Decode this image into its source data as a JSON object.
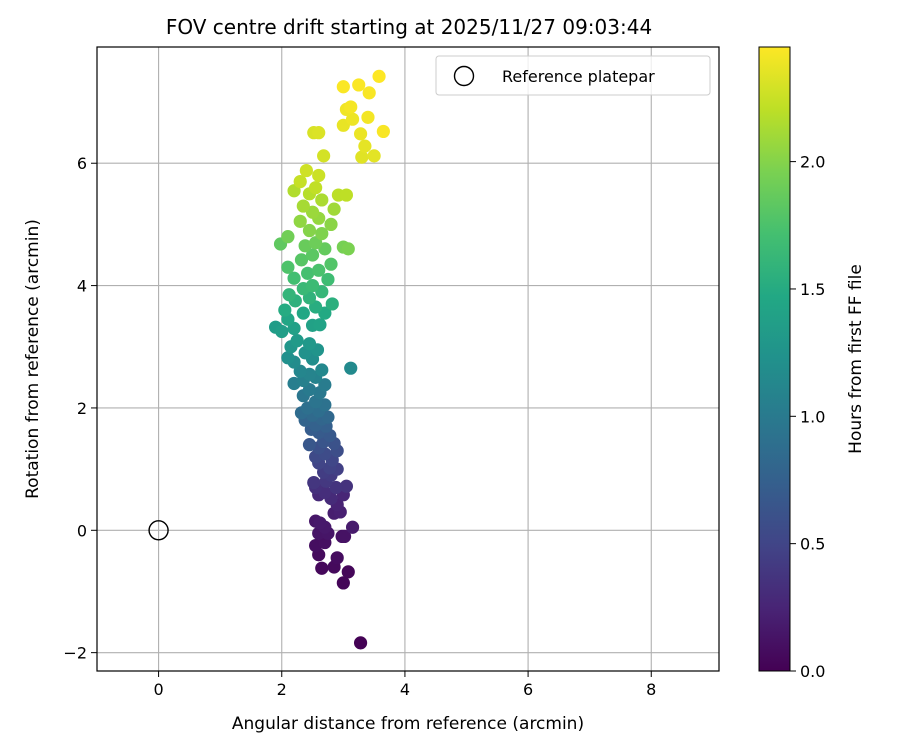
{
  "chart_data": {
    "type": "scatter",
    "title": "FOV centre drift starting at 2025/11/27 09:03:44",
    "xlabel": "Angular distance from reference (arcmin)",
    "ylabel": "Rotation from reference (arcmin)",
    "xlim": [
      -1,
      9.1
    ],
    "ylim": [
      -2.3,
      7.9
    ],
    "xticks": [
      0,
      2,
      4,
      6,
      8
    ],
    "yticks": [
      -2,
      0,
      2,
      4,
      6
    ],
    "grid": true,
    "legend": {
      "placement": "top-right",
      "entries": [
        "Reference platepar"
      ]
    },
    "reference_point": {
      "x": 0,
      "y": 0,
      "marker": "open-circle"
    },
    "colorbar": {
      "label": "Hours from first FF file",
      "colormap": "viridis",
      "range": [
        0,
        2.45
      ],
      "ticks": [
        0.0,
        0.5,
        1.0,
        1.5,
        2.0
      ],
      "tick_labels": [
        "0.0",
        "0.5",
        "1.0",
        "1.5",
        "2.0"
      ]
    },
    "series": [
      {
        "points": [
          [
            3.28,
            -1.84,
            0.01
          ],
          [
            3.0,
            -0.86,
            0.03
          ],
          [
            3.08,
            -0.68,
            0.04
          ],
          [
            2.65,
            -0.62,
            0.05
          ],
          [
            2.85,
            -0.6,
            0.06
          ],
          [
            2.6,
            -0.4,
            0.07
          ],
          [
            2.9,
            -0.45,
            0.08
          ],
          [
            2.55,
            -0.25,
            0.09
          ],
          [
            2.7,
            -0.2,
            0.1
          ],
          [
            2.98,
            -0.1,
            0.11
          ],
          [
            3.02,
            -0.1,
            0.12
          ],
          [
            2.6,
            -0.05,
            0.13
          ],
          [
            2.75,
            -0.05,
            0.14
          ],
          [
            2.55,
            0.15,
            0.15
          ],
          [
            2.7,
            0.05,
            0.16
          ],
          [
            2.62,
            0.12,
            0.17
          ],
          [
            3.15,
            0.05,
            0.18
          ],
          [
            2.85,
            0.28,
            0.2
          ],
          [
            2.95,
            0.3,
            0.22
          ],
          [
            2.9,
            0.42,
            0.24
          ],
          [
            3.0,
            0.58,
            0.26
          ],
          [
            2.6,
            0.58,
            0.28
          ],
          [
            2.8,
            0.52,
            0.3
          ],
          [
            2.7,
            0.62,
            0.32
          ],
          [
            2.55,
            0.7,
            0.34
          ],
          [
            3.05,
            0.72,
            0.36
          ],
          [
            2.88,
            0.7,
            0.37
          ],
          [
            2.52,
            0.78,
            0.38
          ],
          [
            2.72,
            0.8,
            0.4
          ],
          [
            2.8,
            0.9,
            0.42
          ],
          [
            2.68,
            0.95,
            0.44
          ],
          [
            2.9,
            1.0,
            0.46
          ],
          [
            2.78,
            1.02,
            0.48
          ],
          [
            2.6,
            1.1,
            0.5
          ],
          [
            2.82,
            1.15,
            0.52
          ],
          [
            2.55,
            1.2,
            0.54
          ],
          [
            2.7,
            1.25,
            0.56
          ],
          [
            2.9,
            1.3,
            0.58
          ],
          [
            2.6,
            1.35,
            0.6
          ],
          [
            2.85,
            1.42,
            0.62
          ],
          [
            2.68,
            1.45,
            0.64
          ],
          [
            2.45,
            1.4,
            0.66
          ],
          [
            2.78,
            1.55,
            0.68
          ],
          [
            2.6,
            1.6,
            0.7
          ],
          [
            2.48,
            1.65,
            0.72
          ],
          [
            2.72,
            1.7,
            0.74
          ],
          [
            2.55,
            1.72,
            0.76
          ],
          [
            2.38,
            1.8,
            0.78
          ],
          [
            2.65,
            1.82,
            0.8
          ],
          [
            2.75,
            1.85,
            0.82
          ],
          [
            2.5,
            1.88,
            0.84
          ],
          [
            2.32,
            1.92,
            0.86
          ],
          [
            2.6,
            1.95,
            0.88
          ],
          [
            2.42,
            2.0,
            0.9
          ],
          [
            2.7,
            2.05,
            0.92
          ],
          [
            2.55,
            2.1,
            0.94
          ],
          [
            2.35,
            2.2,
            0.96
          ],
          [
            2.62,
            2.25,
            0.98
          ],
          [
            2.45,
            2.3,
            1.0
          ],
          [
            2.7,
            2.38,
            1.02
          ],
          [
            2.2,
            2.4,
            1.04
          ],
          [
            2.35,
            2.45,
            1.06
          ],
          [
            2.55,
            2.5,
            1.08
          ],
          [
            2.45,
            2.55,
            1.1
          ],
          [
            2.3,
            2.6,
            1.12
          ],
          [
            2.65,
            2.62,
            1.14
          ],
          [
            3.12,
            2.65,
            1.16
          ],
          [
            2.2,
            2.75,
            1.18
          ],
          [
            2.5,
            2.8,
            1.2
          ],
          [
            2.1,
            2.82,
            1.22
          ],
          [
            2.38,
            2.9,
            1.24
          ],
          [
            2.58,
            2.95,
            1.26
          ],
          [
            2.15,
            3.0,
            1.28
          ],
          [
            2.45,
            3.05,
            1.3
          ],
          [
            2.25,
            3.1,
            1.32
          ],
          [
            1.9,
            3.32,
            1.34
          ],
          [
            2.0,
            3.25,
            1.36
          ],
          [
            2.2,
            3.3,
            1.38
          ],
          [
            2.5,
            3.35,
            1.4
          ],
          [
            2.62,
            3.36,
            1.42
          ],
          [
            2.1,
            3.45,
            1.44
          ],
          [
            2.35,
            3.55,
            1.46
          ],
          [
            2.7,
            3.55,
            1.48
          ],
          [
            2.05,
            3.6,
            1.5
          ],
          [
            2.55,
            3.65,
            1.52
          ],
          [
            2.82,
            3.7,
            1.54
          ],
          [
            2.22,
            3.75,
            1.56
          ],
          [
            2.45,
            3.8,
            1.58
          ],
          [
            2.12,
            3.85,
            1.6
          ],
          [
            2.65,
            3.9,
            1.62
          ],
          [
            2.35,
            3.95,
            1.64
          ],
          [
            2.5,
            4.0,
            1.66
          ],
          [
            2.75,
            4.1,
            1.68
          ],
          [
            2.2,
            4.12,
            1.7
          ],
          [
            2.42,
            4.2,
            1.72
          ],
          [
            2.6,
            4.25,
            1.74
          ],
          [
            2.1,
            4.3,
            1.76
          ],
          [
            2.8,
            4.35,
            1.78
          ],
          [
            2.32,
            4.42,
            1.8
          ],
          [
            2.5,
            4.5,
            1.82
          ],
          [
            1.98,
            4.68,
            1.84
          ],
          [
            2.7,
            4.6,
            1.86
          ],
          [
            2.38,
            4.65,
            1.88
          ],
          [
            2.55,
            4.7,
            1.9
          ],
          [
            2.1,
            4.8,
            1.92
          ],
          [
            3.0,
            4.63,
            1.94
          ],
          [
            3.08,
            4.6,
            1.96
          ],
          [
            2.65,
            4.85,
            1.98
          ],
          [
            2.45,
            4.9,
            2.0
          ],
          [
            2.8,
            5.0,
            2.02
          ],
          [
            2.3,
            5.05,
            2.04
          ],
          [
            2.6,
            5.1,
            2.06
          ],
          [
            2.5,
            5.2,
            2.08
          ],
          [
            2.85,
            5.25,
            2.1
          ],
          [
            2.35,
            5.3,
            2.12
          ],
          [
            2.65,
            5.4,
            2.14
          ],
          [
            2.2,
            5.55,
            2.16
          ],
          [
            2.45,
            5.5,
            2.18
          ],
          [
            2.92,
            5.48,
            2.2
          ],
          [
            3.05,
            5.48,
            2.21
          ],
          [
            2.55,
            5.6,
            2.22
          ],
          [
            2.3,
            5.7,
            2.24
          ],
          [
            2.6,
            5.8,
            2.26
          ],
          [
            2.4,
            5.88,
            2.27
          ],
          [
            2.68,
            6.12,
            2.29
          ],
          [
            2.52,
            6.5,
            2.31
          ],
          [
            2.6,
            6.5,
            2.32
          ],
          [
            3.3,
            6.1,
            2.34
          ],
          [
            3.5,
            6.12,
            2.35
          ],
          [
            3.35,
            6.28,
            2.36
          ],
          [
            3.0,
            6.62,
            2.37
          ],
          [
            3.28,
            6.48,
            2.38
          ],
          [
            3.15,
            6.72,
            2.39
          ],
          [
            3.05,
            6.88,
            2.4
          ],
          [
            3.4,
            6.75,
            2.41
          ],
          [
            3.12,
            6.92,
            2.42
          ],
          [
            3.65,
            6.52,
            2.43
          ],
          [
            3.42,
            7.15,
            2.43
          ],
          [
            3.25,
            7.28,
            2.44
          ],
          [
            3.0,
            7.25,
            2.44
          ],
          [
            3.58,
            7.42,
            2.45
          ]
        ]
      }
    ]
  }
}
